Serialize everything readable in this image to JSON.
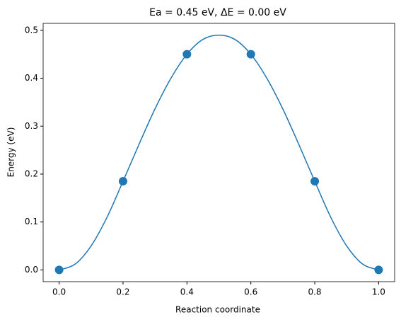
{
  "chart_data": {
    "type": "line",
    "title": "Ea = 0.45 eV, ΔE = 0.00 eV",
    "xlabel": "Reaction coordinate",
    "ylabel": "Energy (eV)",
    "series": [
      {
        "name": "images",
        "style": "markers",
        "color": "#1f77b4",
        "x": [
          0.0,
          0.2,
          0.4,
          0.6,
          0.8,
          1.0
        ],
        "values": [
          0.0,
          0.185,
          0.45,
          0.45,
          0.185,
          0.0
        ]
      },
      {
        "name": "fit",
        "style": "smooth",
        "color": "#1f77b4",
        "x": [
          0.0,
          0.05,
          0.1,
          0.15,
          0.2,
          0.25,
          0.3,
          0.35,
          0.4,
          0.45,
          0.5,
          0.55,
          0.6,
          0.65,
          0.7,
          0.75,
          0.8,
          0.85,
          0.9,
          0.95,
          1.0
        ],
        "values": [
          0.0,
          0.012,
          0.05,
          0.11,
          0.185,
          0.262,
          0.336,
          0.4,
          0.45,
          0.481,
          0.49,
          0.481,
          0.45,
          0.4,
          0.336,
          0.262,
          0.185,
          0.11,
          0.05,
          0.012,
          0.0
        ]
      }
    ],
    "xlim": [
      -0.05,
      1.05
    ],
    "ylim": [
      -0.0245,
      0.5145
    ],
    "xticks": [
      {
        "value": 0,
        "label": "0.0"
      },
      0.2,
      0.4,
      0.6,
      0.8,
      {
        "value": 1,
        "label": "1.0"
      }
    ],
    "yticks": [
      {
        "value": 0,
        "label": "0.0"
      },
      0.1,
      0.2,
      0.3,
      0.4,
      0.5
    ]
  }
}
